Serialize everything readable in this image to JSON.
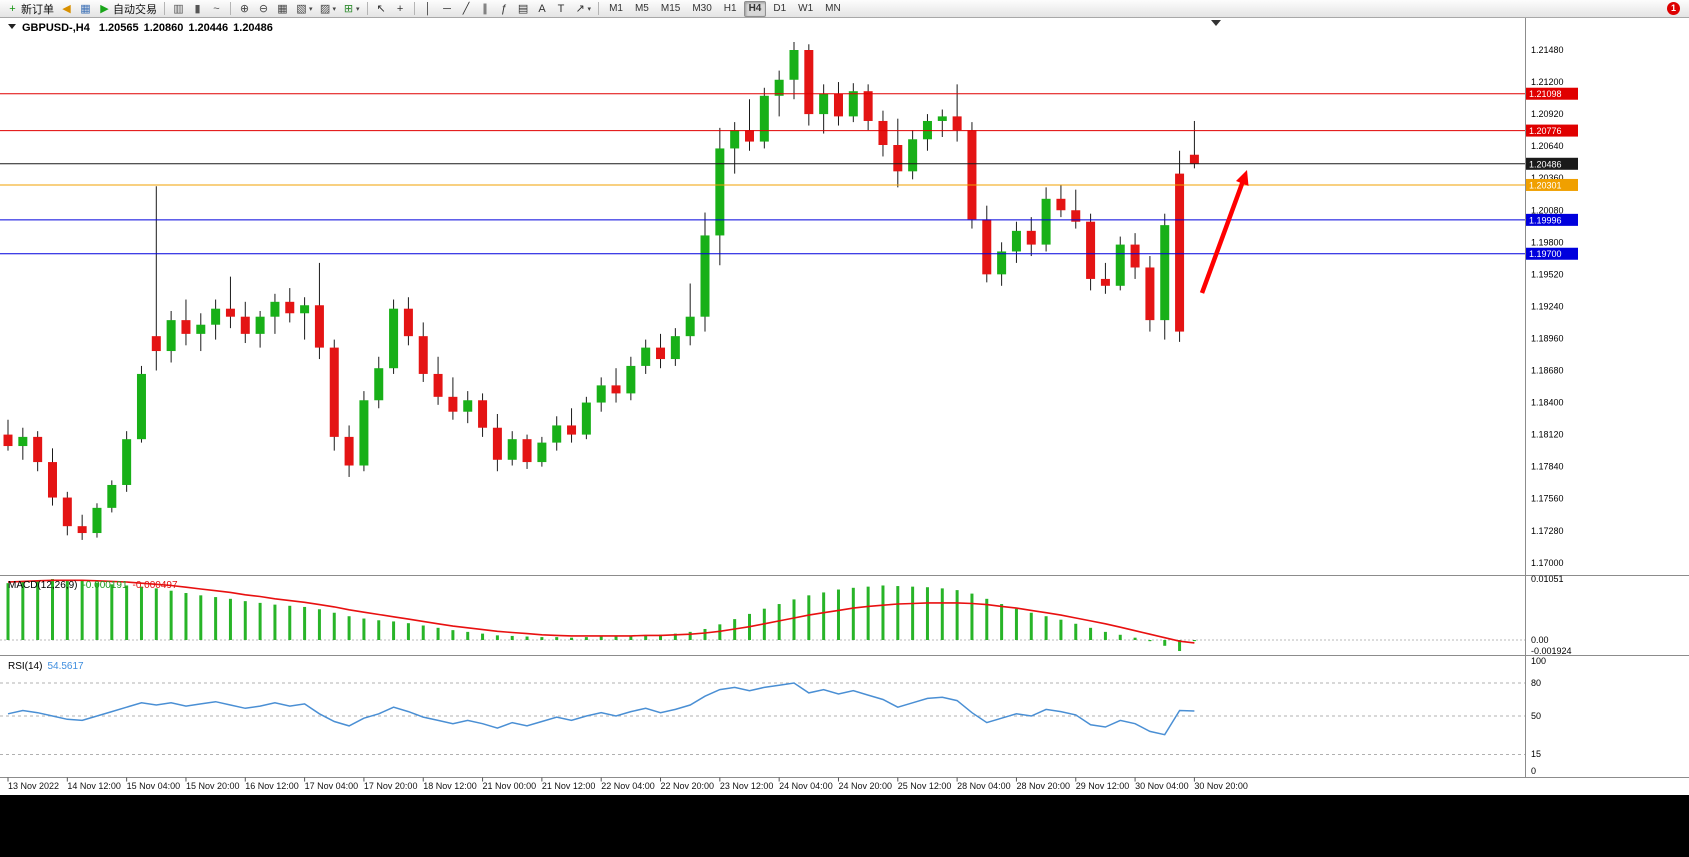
{
  "toolbar": {
    "buttons": [
      {
        "name": "new-order",
        "icon": "new-order-icon",
        "glyph": "+",
        "color": "#12930f",
        "label": "新订单"
      },
      {
        "name": "market-watch",
        "icon": "megaphone-icon",
        "glyph": "◀",
        "color": "#d89000"
      },
      {
        "name": "chart-window",
        "icon": "chart-window-icon",
        "glyph": "▦",
        "color": "#3b6fb5"
      },
      {
        "name": "auto-trading",
        "icon": "autotrade-play-icon",
        "glyph": "▶",
        "color": "#19a519",
        "label": "自动交易"
      },
      {
        "sep": true
      },
      {
        "name": "bar-chart",
        "icon": "bar-chart-icon",
        "glyph": "▥",
        "color": "#555555"
      },
      {
        "name": "candlestick-chart",
        "icon": "candlestick-icon",
        "glyph": "▮",
        "color": "#555555"
      },
      {
        "name": "line-chart",
        "icon": "line-chart-icon",
        "glyph": "~",
        "color": "#555555"
      },
      {
        "sep": true
      },
      {
        "name": "zoom-in",
        "icon": "zoom-in-icon",
        "glyph": "⊕",
        "color": "#444444"
      },
      {
        "name": "zoom-out",
        "icon": "zoom-out-icon",
        "glyph": "⊖",
        "color": "#444444"
      },
      {
        "name": "tile-windows",
        "icon": "tile-windows-icon",
        "glyph": "▦",
        "color": "#444444"
      },
      {
        "name": "new-chart",
        "icon": "new-chart-icon",
        "glyph": "▧",
        "color": "#444444",
        "dropdown": true
      },
      {
        "name": "profiles",
        "icon": "profiles-icon",
        "glyph": "▨",
        "color": "#444444",
        "dropdown": true
      },
      {
        "name": "indicators",
        "icon": "indicators-icon",
        "glyph": "⊞",
        "color": "#2e8b2e",
        "dropdown": true
      },
      {
        "sep": true
      },
      {
        "name": "cursor",
        "icon": "cursor-icon",
        "glyph": "↖",
        "color": "#333333"
      },
      {
        "name": "crosshair",
        "icon": "crosshair-icon",
        "glyph": "+",
        "color": "#333333"
      },
      {
        "sep": true
      },
      {
        "name": "vertical-line",
        "icon": "vertical-line-icon",
        "glyph": "│",
        "color": "#333333"
      },
      {
        "name": "horizontal-line",
        "icon": "horizontal-line-icon",
        "glyph": "─",
        "color": "#333333"
      },
      {
        "name": "trendline",
        "icon": "trendline-icon",
        "glyph": "╱",
        "color": "#333333"
      },
      {
        "name": "equidistant-channel",
        "icon": "channel-icon",
        "glyph": "∥",
        "color": "#333333"
      },
      {
        "name": "fibonacci",
        "icon": "fibonacci-icon",
        "glyph": "ƒ",
        "color": "#333333"
      },
      {
        "name": "shapes",
        "icon": "shapes-icon",
        "glyph": "▤",
        "color": "#333333"
      },
      {
        "name": "text",
        "icon": "text-icon",
        "glyph": "A",
        "color": "#333333"
      },
      {
        "name": "text-label",
        "icon": "text-label-icon",
        "glyph": "T",
        "color": "#333333"
      },
      {
        "name": "arrow-objects",
        "icon": "arrow-objects-icon",
        "glyph": "↗",
        "color": "#333333",
        "dropdown": true
      },
      {
        "sep": true
      }
    ],
    "timeframes": [
      "M1",
      "M5",
      "M15",
      "M30",
      "H1",
      "H4",
      "D1",
      "W1",
      "MN"
    ],
    "active_timeframe": "H4",
    "notification_count": "1"
  },
  "chart": {
    "symbol_period": "GBPUSD-,H4",
    "ohlc": {
      "open": "1.20565",
      "high": "1.20860",
      "low": "1.20446",
      "close": "1.20486"
    },
    "price_axis": [
      "1.21480",
      "1.21200",
      "1.20920",
      "1.20640",
      "1.20360",
      "1.20080",
      "1.19800",
      "1.19520",
      "1.19240",
      "1.18960",
      "1.18680",
      "1.18400",
      "1.18120",
      "1.17840",
      "1.17560",
      "1.17280",
      "1.17000"
    ],
    "hlines": [
      {
        "price": 1.21098,
        "label": "1.21098",
        "color": "#e00000"
      },
      {
        "price": 1.20776,
        "label": "1.20776",
        "color": "#e00000"
      },
      {
        "price": 1.20486,
        "label": "1.20486",
        "color": "#1a1a1a"
      },
      {
        "price": 1.20301,
        "label": "1.20301",
        "color": "#f0a000"
      },
      {
        "price": 1.19996,
        "label": "1.19996",
        "color": "#0000dd"
      },
      {
        "price": 1.197,
        "label": "1.19700",
        "color": "#0000dd"
      }
    ],
    "colors": {
      "up": "#18b018",
      "down": "#e41414",
      "wick": "#1a1a1a",
      "arrow": "#ff0000"
    }
  },
  "chart_data": {
    "type": "candlestick",
    "symbol": "GBPUSD-",
    "period": "H4",
    "price_range": [
      1.17,
      1.2148
    ],
    "candles_ohlc": [
      [
        1.1812,
        1.1825,
        1.1798,
        1.1802
      ],
      [
        1.1802,
        1.1818,
        1.179,
        1.181
      ],
      [
        1.181,
        1.1815,
        1.178,
        1.1788
      ],
      [
        1.1788,
        1.18,
        1.175,
        1.1757
      ],
      [
        1.1757,
        1.1762,
        1.1724,
        1.1732
      ],
      [
        1.1732,
        1.1742,
        1.172,
        1.1726
      ],
      [
        1.1726,
        1.1752,
        1.1722,
        1.1748
      ],
      [
        1.1748,
        1.1772,
        1.1744,
        1.1768
      ],
      [
        1.1768,
        1.1815,
        1.1762,
        1.1808
      ],
      [
        1.1808,
        1.1872,
        1.1805,
        1.1865
      ],
      [
        1.1898,
        1.2029,
        1.1868,
        1.1885
      ],
      [
        1.1885,
        1.192,
        1.1875,
        1.1912
      ],
      [
        1.1912,
        1.193,
        1.189,
        1.19
      ],
      [
        1.19,
        1.1918,
        1.1885,
        1.1908
      ],
      [
        1.1908,
        1.193,
        1.1895,
        1.1922
      ],
      [
        1.1922,
        1.195,
        1.1905,
        1.1915
      ],
      [
        1.1915,
        1.1928,
        1.1892,
        1.19
      ],
      [
        1.19,
        1.192,
        1.1888,
        1.1915
      ],
      [
        1.1915,
        1.1935,
        1.19,
        1.1928
      ],
      [
        1.1928,
        1.194,
        1.191,
        1.1918
      ],
      [
        1.1918,
        1.1932,
        1.1895,
        1.1925
      ],
      [
        1.1925,
        1.1962,
        1.1878,
        1.1888
      ],
      [
        1.1888,
        1.1895,
        1.1798,
        1.181
      ],
      [
        1.181,
        1.182,
        1.1775,
        1.1785
      ],
      [
        1.1785,
        1.185,
        1.178,
        1.1842
      ],
      [
        1.1842,
        1.188,
        1.1835,
        1.187
      ],
      [
        1.187,
        1.193,
        1.1865,
        1.1922
      ],
      [
        1.1922,
        1.1932,
        1.189,
        1.1898
      ],
      [
        1.1898,
        1.191,
        1.1858,
        1.1865
      ],
      [
        1.1865,
        1.188,
        1.1838,
        1.1845
      ],
      [
        1.1845,
        1.1862,
        1.1825,
        1.1832
      ],
      [
        1.1832,
        1.185,
        1.1822,
        1.1842
      ],
      [
        1.1842,
        1.1848,
        1.181,
        1.1818
      ],
      [
        1.1818,
        1.183,
        1.178,
        1.179
      ],
      [
        1.179,
        1.1815,
        1.1785,
        1.1808
      ],
      [
        1.1808,
        1.1812,
        1.1782,
        1.1788
      ],
      [
        1.1788,
        1.181,
        1.1784,
        1.1805
      ],
      [
        1.1805,
        1.1828,
        1.1798,
        1.182
      ],
      [
        1.182,
        1.1835,
        1.1805,
        1.1812
      ],
      [
        1.1812,
        1.1845,
        1.1808,
        1.184
      ],
      [
        1.184,
        1.1862,
        1.1832,
        1.1855
      ],
      [
        1.1855,
        1.187,
        1.184,
        1.1848
      ],
      [
        1.1848,
        1.188,
        1.1842,
        1.1872
      ],
      [
        1.1872,
        1.1895,
        1.1865,
        1.1888
      ],
      [
        1.1888,
        1.19,
        1.187,
        1.1878
      ],
      [
        1.1878,
        1.1905,
        1.1872,
        1.1898
      ],
      [
        1.1898,
        1.1944,
        1.189,
        1.1915
      ],
      [
        1.1915,
        1.2006,
        1.1902,
        1.1986
      ],
      [
        1.1986,
        1.208,
        1.196,
        1.2062
      ],
      [
        1.2062,
        1.2085,
        1.204,
        1.2078
      ],
      [
        1.2078,
        1.2105,
        1.206,
        1.2068
      ],
      [
        1.2068,
        1.2115,
        1.2062,
        1.2108
      ],
      [
        1.2108,
        1.213,
        1.209,
        1.2122
      ],
      [
        1.2122,
        1.2155,
        1.2105,
        1.2148
      ],
      [
        1.2148,
        1.2153,
        1.2082,
        1.2092
      ],
      [
        1.2092,
        1.2118,
        1.2075,
        1.211
      ],
      [
        1.211,
        1.212,
        1.2082,
        1.209
      ],
      [
        1.209,
        1.2119,
        1.2085,
        1.2112
      ],
      [
        1.2112,
        1.2118,
        1.2078,
        1.2086
      ],
      [
        1.2086,
        1.2095,
        1.2055,
        1.2065
      ],
      [
        1.2065,
        1.2088,
        1.2028,
        1.2042
      ],
      [
        1.2042,
        1.2078,
        1.2035,
        1.207
      ],
      [
        1.207,
        1.2092,
        1.206,
        1.2086
      ],
      [
        1.2086,
        1.2096,
        1.2072,
        1.209
      ],
      [
        1.209,
        1.2118,
        1.2068,
        1.2078
      ],
      [
        1.2078,
        1.2085,
        1.1992,
        1.2
      ],
      [
        1.2,
        1.2012,
        1.1945,
        1.1952
      ],
      [
        1.1952,
        1.198,
        1.1942,
        1.1972
      ],
      [
        1.1972,
        1.1998,
        1.1962,
        1.199
      ],
      [
        1.199,
        1.2002,
        1.1968,
        1.1978
      ],
      [
        1.1978,
        1.2028,
        1.1972,
        1.2018
      ],
      [
        1.2018,
        1.203,
        1.2002,
        1.2008
      ],
      [
        1.2008,
        1.2026,
        1.1992,
        1.1998
      ],
      [
        1.1998,
        1.2005,
        1.1938,
        1.1948
      ],
      [
        1.1948,
        1.1962,
        1.1935,
        1.1942
      ],
      [
        1.1942,
        1.1985,
        1.1938,
        1.1978
      ],
      [
        1.1978,
        1.1988,
        1.1948,
        1.1958
      ],
      [
        1.1958,
        1.1968,
        1.1902,
        1.1912
      ],
      [
        1.1912,
        1.2005,
        1.1895,
        1.1995
      ],
      [
        1.204,
        1.206,
        1.1893,
        1.1902
      ],
      [
        1.20565,
        1.2086,
        1.20446,
        1.20486
      ]
    ],
    "macd_histogram": [
      0.0098,
      0.01,
      0.0102,
      0.01051,
      0.0104,
      0.0102,
      0.0099,
      0.0096,
      0.0094,
      0.0092,
      0.0089,
      0.0085,
      0.0081,
      0.0077,
      0.0074,
      0.0071,
      0.0067,
      0.0064,
      0.0061,
      0.0059,
      0.0057,
      0.0053,
      0.0047,
      0.0041,
      0.0037,
      0.0034,
      0.0032,
      0.0029,
      0.0025,
      0.0021,
      0.0017,
      0.0014,
      0.0011,
      0.0008,
      0.0007,
      0.0006,
      0.0005,
      0.0005,
      0.0004,
      0.0005,
      0.0006,
      0.0006,
      0.0007,
      0.0008,
      0.0009,
      0.0011,
      0.0014,
      0.0019,
      0.0027,
      0.0036,
      0.0045,
      0.0054,
      0.0062,
      0.007,
      0.0077,
      0.0082,
      0.0087,
      0.009,
      0.0092,
      0.0094,
      0.0093,
      0.0092,
      0.0091,
      0.0089,
      0.0086,
      0.008,
      0.0071,
      0.0062,
      0.0054,
      0.0047,
      0.0041,
      0.0035,
      0.0028,
      0.0021,
      0.0014,
      0.0009,
      0.0004,
      -0.0002,
      -0.001,
      -0.0019,
      -0.000191
    ],
    "macd_signal": [
      0.01,
      0.0101,
      0.0102,
      0.0103,
      0.0103,
      0.0103,
      0.0102,
      0.0101,
      0.01,
      0.0098,
      0.0096,
      0.0094,
      0.0091,
      0.0088,
      0.0085,
      0.0082,
      0.0078,
      0.0075,
      0.0071,
      0.0068,
      0.0065,
      0.0061,
      0.0057,
      0.0052,
      0.0048,
      0.0044,
      0.004,
      0.0036,
      0.0032,
      0.0028,
      0.0024,
      0.0021,
      0.0018,
      0.0015,
      0.0013,
      0.0011,
      0.0009,
      0.0008,
      0.0007,
      0.0007,
      0.0007,
      0.0007,
      0.0007,
      0.0008,
      0.0008,
      0.0009,
      0.001,
      0.0012,
      0.0015,
      0.0019,
      0.0023,
      0.0028,
      0.0033,
      0.0038,
      0.0043,
      0.0047,
      0.0051,
      0.0055,
      0.0058,
      0.006,
      0.0062,
      0.0063,
      0.0064,
      0.0064,
      0.0064,
      0.0063,
      0.0061,
      0.0058,
      0.0055,
      0.0051,
      0.0047,
      0.0043,
      0.0038,
      0.0033,
      0.0028,
      0.0022,
      0.0016,
      0.001,
      0.0004,
      -0.0002,
      -0.000497
    ],
    "rsi": [
      52,
      55,
      53,
      50,
      47,
      46,
      50,
      54,
      58,
      62,
      60,
      62,
      59,
      61,
      63,
      60,
      57,
      59,
      62,
      59,
      61,
      52,
      45,
      41,
      48,
      52,
      58,
      54,
      49,
      46,
      43,
      46,
      43,
      39,
      44,
      41,
      45,
      49,
      46,
      50,
      53,
      50,
      54,
      57,
      53,
      56,
      60,
      68,
      74,
      76,
      73,
      76,
      78,
      80,
      71,
      74,
      70,
      73,
      69,
      65,
      58,
      62,
      66,
      67,
      64,
      53,
      44,
      48,
      52,
      50,
      56,
      54,
      51,
      42,
      40,
      46,
      43,
      36,
      33,
      55,
      54.5617
    ]
  },
  "macd": {
    "name": "MACD(12,26,9)",
    "main_value": "-0.000191",
    "signal_value": "-0.000497",
    "axis": [
      "0.01051",
      "0.00",
      "-0.001924"
    ],
    "histogram_color": "#28b428",
    "signal_color": "#e81010"
  },
  "rsi": {
    "name": "RSI(14)",
    "value": "54.5617",
    "axis": [
      "100",
      "80",
      "50",
      "15",
      "0"
    ],
    "levels": [
      80,
      50,
      15
    ],
    "line_color": "#4a8fd4"
  },
  "time_axis": {
    "labels": [
      "13 Nov 2022",
      "14 Nov 12:00",
      "15 Nov 04:00",
      "15 Nov 20:00",
      "16 Nov 12:00",
      "17 Nov 04:00",
      "17 Nov 20:00",
      "18 Nov 12:00",
      "21 Nov 00:00",
      "21 Nov 12:00",
      "22 Nov 04:00",
      "22 Nov 20:00",
      "23 Nov 12:00",
      "24 Nov 04:00",
      "24 Nov 20:00",
      "25 Nov 12:00",
      "28 Nov 04:00",
      "28 Nov 20:00",
      "29 Nov 12:00",
      "30 Nov 04:00",
      "30 Nov 20:00"
    ]
  }
}
